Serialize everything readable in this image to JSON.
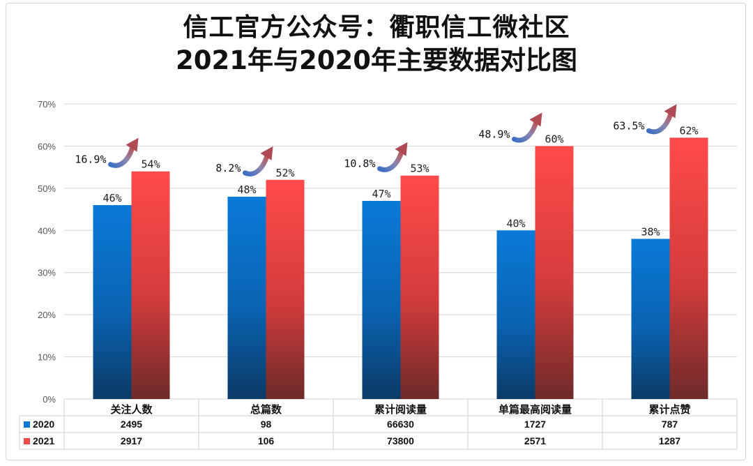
{
  "title_line1": "信工官方公众号：衢职信工微社区",
  "title_line2": "2021年与2020年主要数据对比图",
  "colors": {
    "s2020": "#0a78d4",
    "s2021": "#f04a4a",
    "arrow": "#7a8fb8",
    "grid": "#d6d6d6"
  },
  "chart_data": {
    "type": "bar",
    "categories": [
      "关注人数",
      "总篇数",
      "累计阅读量",
      "单篇最高阅读量",
      "累计点赞"
    ],
    "series": [
      {
        "name": "2020",
        "values": [
          46,
          48,
          47,
          40,
          38
        ],
        "labels": [
          "46%",
          "48%",
          "47%",
          "40%",
          "38%"
        ]
      },
      {
        "name": "2021",
        "values": [
          54,
          52,
          53,
          60,
          62
        ],
        "labels": [
          "54%",
          "52%",
          "53%",
          "60%",
          "62%"
        ]
      }
    ],
    "ylim": [
      0,
      70
    ],
    "yticks": [
      "0%",
      "10%",
      "20%",
      "30%",
      "40%",
      "50%",
      "60%",
      "70%"
    ],
    "growth_labels": [
      "16.9%",
      "8.2%",
      "10.8%",
      "48.9%",
      "63.5%"
    ],
    "table": {
      "rows": [
        {
          "label": "2020",
          "values": [
            "2495",
            "98",
            "66630",
            "1727",
            "787"
          ]
        },
        {
          "label": "2021",
          "values": [
            "2917",
            "106",
            "73800",
            "2571",
            "1287"
          ]
        }
      ]
    },
    "grid": true,
    "legend": "table-left"
  }
}
